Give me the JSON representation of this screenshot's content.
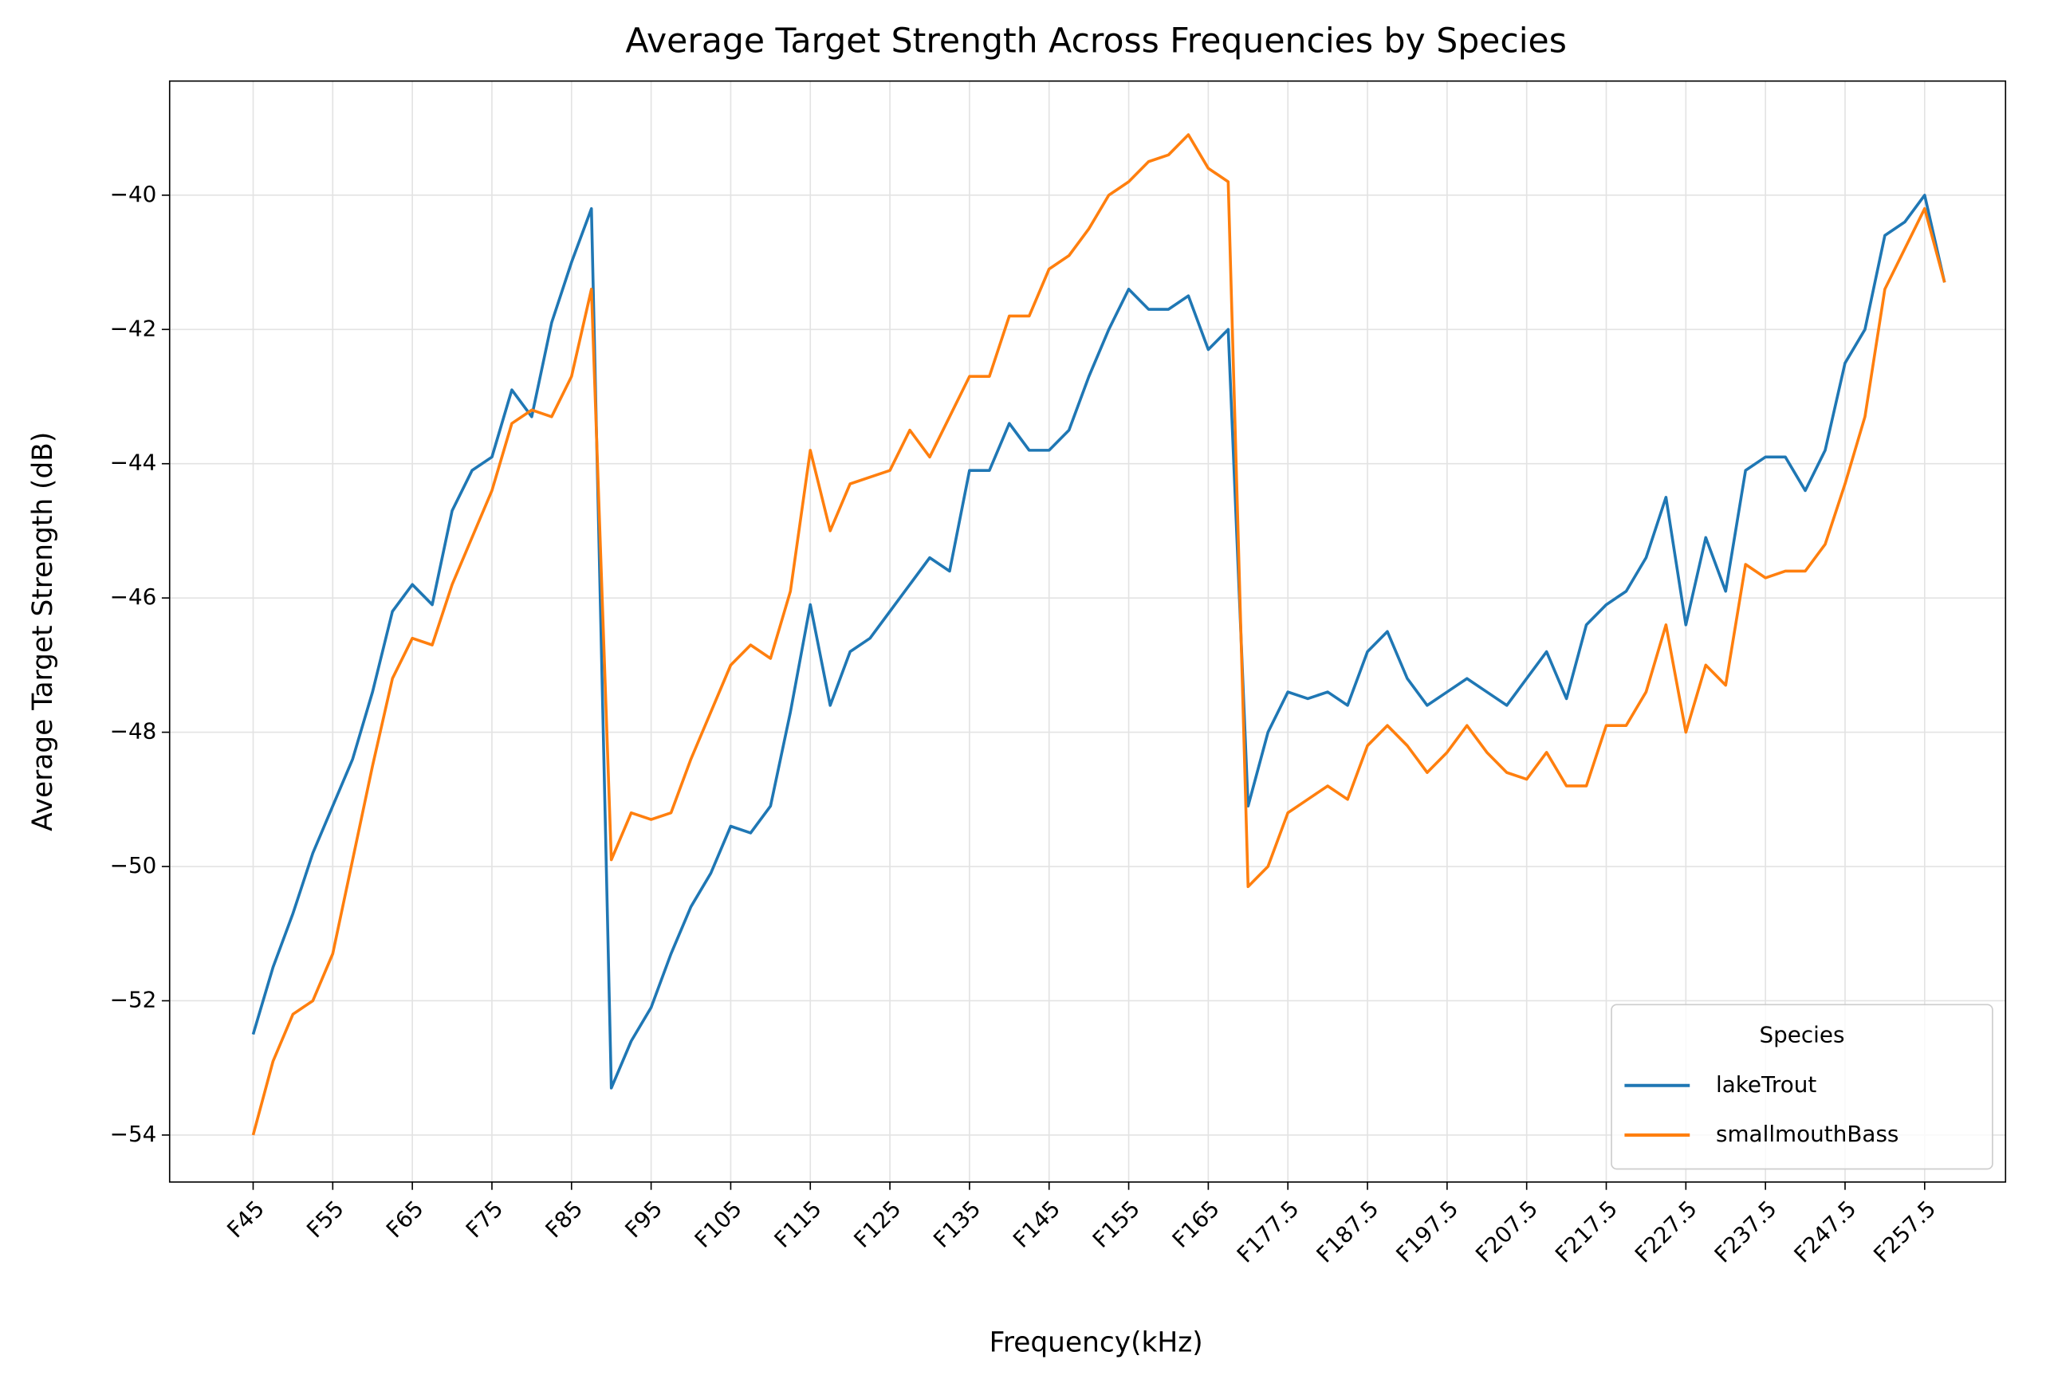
{
  "chart_data": {
    "type": "line",
    "title": "Average Target Strength Across Frequencies by Species",
    "x_label": "Frequency(kHz)",
    "y_label": "Average Target Strength (dB)",
    "legend_title": "Species",
    "legend_position": "lower right",
    "grid": true,
    "categories": [
      "F45",
      null,
      null,
      null,
      "F55",
      null,
      null,
      null,
      "F65",
      null,
      null,
      null,
      "F75",
      null,
      null,
      null,
      "F85",
      null,
      null,
      null,
      "F95",
      null,
      null,
      null,
      "F105",
      null,
      null,
      null,
      "F115",
      null,
      null,
      null,
      "F125",
      null,
      null,
      null,
      "F135",
      null,
      null,
      null,
      "F145",
      null,
      null,
      null,
      "F155",
      null,
      null,
      null,
      "F165",
      null,
      null,
      null,
      "F177.5",
      null,
      null,
      null,
      "F187.5",
      null,
      null,
      null,
      "F197.5",
      null,
      null,
      null,
      "F207.5",
      null,
      null,
      null,
      "F217.5",
      null,
      null,
      null,
      "F227.5",
      null,
      null,
      null,
      "F237.5",
      null,
      null,
      null,
      "F247.5",
      null,
      null,
      null,
      "F257.5",
      null
    ],
    "ylim": [
      -54.7,
      -38.3
    ],
    "yticks": [
      {
        "value": -54,
        "label": "−54"
      },
      {
        "value": -52,
        "label": "−52"
      },
      {
        "value": -50,
        "label": "−50"
      },
      {
        "value": -48,
        "label": "−48"
      },
      {
        "value": -46,
        "label": "−46"
      },
      {
        "value": -44,
        "label": "−44"
      },
      {
        "value": -42,
        "label": "−42"
      },
      {
        "value": -40,
        "label": "−40"
      }
    ],
    "series": [
      {
        "name": "lakeTrout",
        "color": "#1f77b4",
        "values": [
          -52.5,
          -51.5,
          -50.7,
          -49.8,
          -49.1,
          -48.4,
          -47.4,
          -46.2,
          -45.8,
          -46.1,
          -44.7,
          -44.1,
          -43.9,
          -42.9,
          -43.3,
          -41.9,
          -41.0,
          -40.2,
          -53.3,
          -52.6,
          -52.1,
          -51.3,
          -50.6,
          -50.1,
          -49.4,
          -49.5,
          -49.1,
          -47.7,
          -46.1,
          -47.6,
          -46.8,
          -46.6,
          -46.2,
          -45.8,
          -45.4,
          -45.6,
          -44.1,
          -44.1,
          -43.4,
          -43.8,
          -43.8,
          -43.5,
          -42.7,
          -42.0,
          -41.4,
          -41.7,
          -41.7,
          -41.5,
          -42.3,
          -42.0,
          -49.1,
          -48.0,
          -47.4,
          -47.5,
          -47.4,
          -47.6,
          -46.8,
          -46.5,
          -47.2,
          -47.6,
          -47.4,
          -47.2,
          -47.4,
          -47.6,
          -47.2,
          -46.8,
          -47.5,
          -46.4,
          -46.1,
          -45.9,
          -45.4,
          -44.5,
          -46.4,
          -45.1,
          -45.9,
          -44.1,
          -43.9,
          -43.9,
          -44.4,
          -43.8,
          -42.5,
          -42.0,
          -40.6,
          -40.4,
          -40.0,
          -41.3
        ]
      },
      {
        "name": "smallmouthBass",
        "color": "#ff7f0e",
        "values": [
          -54.0,
          -52.9,
          -52.2,
          -52.0,
          -51.3,
          -49.9,
          -48.5,
          -47.2,
          -46.6,
          -46.7,
          -45.8,
          -45.1,
          -44.4,
          -43.4,
          -43.2,
          -43.3,
          -42.7,
          -41.4,
          -49.9,
          -49.2,
          -49.3,
          -49.2,
          -48.4,
          -47.7,
          -47.0,
          -46.7,
          -46.9,
          -45.9,
          -43.8,
          -45.0,
          -44.3,
          -44.2,
          -44.1,
          -43.5,
          -43.9,
          -43.3,
          -42.7,
          -42.7,
          -41.8,
          -41.8,
          -41.1,
          -40.9,
          -40.5,
          -40.0,
          -39.8,
          -39.5,
          -39.4,
          -39.1,
          -39.6,
          -39.8,
          -50.3,
          -50.0,
          -49.2,
          -49.0,
          -48.8,
          -49.0,
          -48.2,
          -47.9,
          -48.2,
          -48.6,
          -48.3,
          -47.9,
          -48.3,
          -48.6,
          -48.7,
          -48.3,
          -48.8,
          -48.8,
          -47.9,
          -47.9,
          -47.4,
          -46.4,
          -48.0,
          -47.0,
          -47.3,
          -45.5,
          -45.7,
          -45.6,
          -45.6,
          -45.2,
          -44.3,
          -43.3,
          -41.4,
          -40.8,
          -40.2,
          -41.3
        ]
      }
    ]
  }
}
